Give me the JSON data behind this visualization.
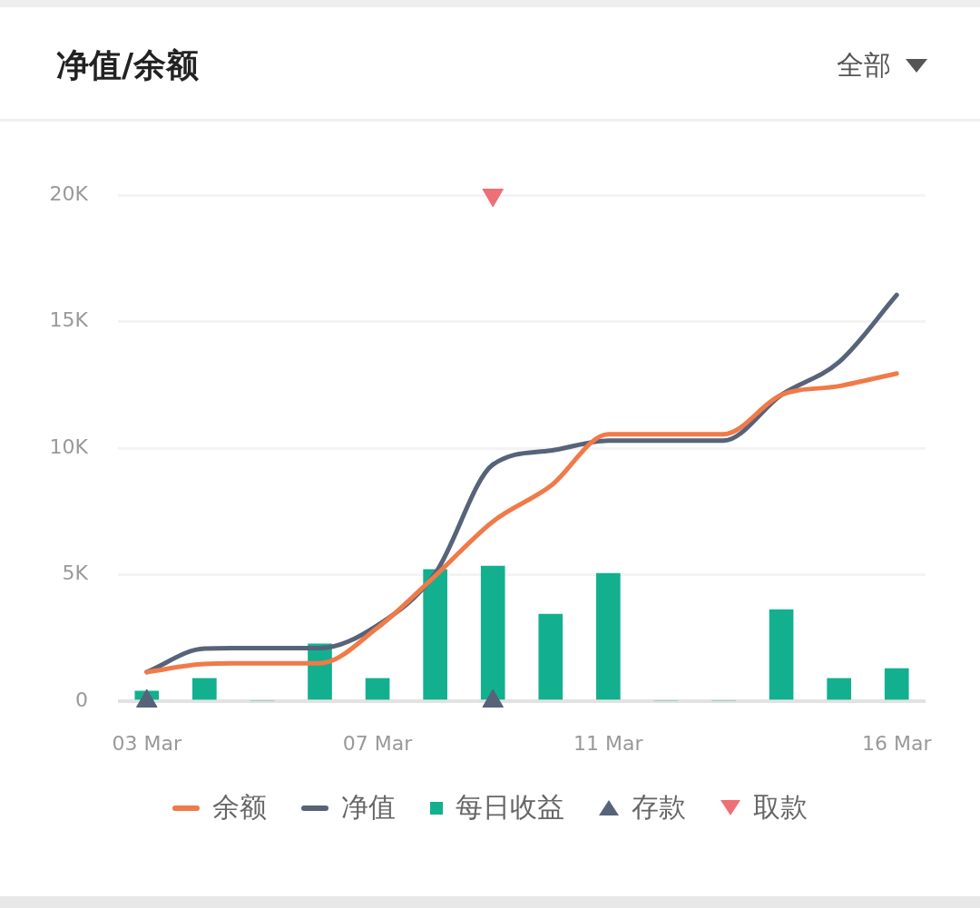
{
  "chart_data": {
    "type": "line",
    "title": "净值/余额",
    "annotations": [
      "全部"
    ],
    "categories": [
      "03 Mar",
      null,
      null,
      null,
      "07 Mar",
      null,
      null,
      null,
      "11 Mar",
      null,
      null,
      null,
      null,
      "16 Mar"
    ],
    "series": [
      {
        "name": "余额",
        "color": "#f07a48",
        "values": [
          1150,
          1470,
          1500,
          1500,
          2900,
          4950,
          7100,
          8500,
          10550,
          10550,
          10550,
          12100,
          12450,
          12950
        ]
      },
      {
        "name": "净值",
        "color": "#566379",
        "values": [
          1150,
          2080,
          2100,
          2100,
          3000,
          5050,
          9350,
          9900,
          10300,
          10300,
          10300,
          12100,
          13400,
          16050
        ]
      },
      {
        "name": "每日收益",
        "type": "bar",
        "color": "#12b08f",
        "values": [
          400,
          900,
          0,
          2260,
          900,
          5200,
          5340,
          3440,
          5050,
          0,
          0,
          3620,
          900,
          1290
        ]
      },
      {
        "name": "存款",
        "type": "scatter",
        "marker": "triangle",
        "color": "#566379",
        "values": [
          0,
          null,
          null,
          null,
          null,
          null,
          0,
          null,
          null,
          null,
          null,
          null,
          null,
          null
        ]
      },
      {
        "name": "取款",
        "type": "scatter",
        "marker": "triangle-down",
        "color": "#ee6f76",
        "values": [
          null,
          null,
          null,
          null,
          null,
          null,
          20000,
          null,
          null,
          null,
          null,
          null,
          null,
          null
        ]
      }
    ],
    "ylim": [
      0,
      20000
    ],
    "yticks": [
      0,
      {
        "value": 5000,
        "label": "5K"
      },
      {
        "value": 10000,
        "label": "10K"
      },
      {
        "value": 15000,
        "label": "15K"
      },
      {
        "value": 20000,
        "label": "20K"
      }
    ],
    "grid": "y",
    "legend": "bottom",
    "line_style": "solid"
  }
}
